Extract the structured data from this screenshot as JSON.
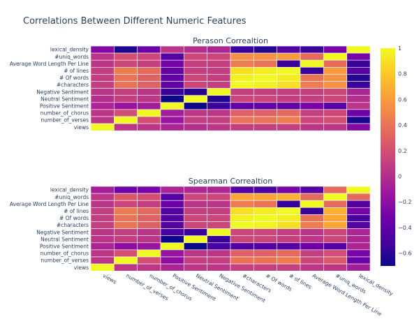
{
  "chart_data": {
    "type": "heatmap",
    "title": "Correlations Between Different Numeric Features",
    "features": [
      "views",
      "number_of_verses",
      "number_of_chorus",
      "Positive Sentiment",
      "Neutral Sentiment",
      "Negative Sentiment",
      "#characters",
      "# Of words",
      "# of lines",
      "Average Word Length Per Line",
      "#uniq_words",
      "lexical_density"
    ],
    "colorscale": [
      "#0d0887",
      "#46039f",
      "#7201a8",
      "#9c179e",
      "#bd3786",
      "#d8576b",
      "#ed7953",
      "#fb9f3a",
      "#fdca26",
      "#f0f921"
    ],
    "colorbar": {
      "range": [
        -0.7,
        1.0
      ],
      "ticks": [
        1,
        0.8,
        0.6,
        0.4,
        0.2,
        0,
        -0.2,
        -0.4,
        -0.6
      ],
      "tick_labels": [
        "1",
        "0.8",
        "0.6",
        "0.4",
        "0.2",
        "0",
        "−0.2",
        "−0.4",
        "−0.6"
      ]
    },
    "panels": [
      {
        "name": "Perason Correaltion",
        "y_labels": [
          "lexical_density",
          "#uniq_words",
          "Average Word Length Per Line",
          "# of lines",
          "# Of words",
          "#characters",
          "Negative Sentiment",
          "Neutral Sentiment",
          "Positive Sentiment",
          "number_of_chorus",
          "number_of_verses",
          "views"
        ],
        "z": [
          [
            -0.25,
            -0.65,
            -0.35,
            0.05,
            0.0,
            -0.05,
            -0.55,
            -0.62,
            -0.45,
            -0.55,
            -0.3,
            1.0
          ],
          [
            0.05,
            0.2,
            0.15,
            -0.45,
            0.15,
            0.15,
            0.55,
            0.55,
            0.6,
            0.35,
            1.0,
            -0.3
          ],
          [
            0.05,
            0.15,
            0.1,
            -0.3,
            0.1,
            0.1,
            0.45,
            0.4,
            -0.55,
            1.0,
            0.35,
            -0.55
          ],
          [
            0.1,
            0.45,
            0.35,
            -0.4,
            0.1,
            0.1,
            0.9,
            0.95,
            1.0,
            -0.55,
            0.6,
            -0.45
          ],
          [
            0.1,
            0.4,
            0.3,
            -0.4,
            0.15,
            0.1,
            0.97,
            1.0,
            0.95,
            0.4,
            0.55,
            -0.62
          ],
          [
            0.1,
            0.4,
            0.3,
            -0.4,
            0.15,
            0.1,
            1.0,
            0.97,
            0.9,
            0.45,
            0.55,
            -0.55
          ],
          [
            0.05,
            0.1,
            0.05,
            -0.55,
            -0.62,
            1.0,
            0.1,
            0.1,
            0.1,
            0.1,
            0.15,
            -0.05
          ],
          [
            0.0,
            0.1,
            0.05,
            -0.7,
            1.0,
            -0.62,
            0.15,
            0.15,
            0.1,
            0.1,
            0.15,
            0.0
          ],
          [
            -0.05,
            -0.15,
            -0.1,
            1.0,
            -0.7,
            -0.55,
            -0.4,
            -0.4,
            -0.4,
            -0.3,
            -0.45,
            0.05
          ],
          [
            0.05,
            0.2,
            1.0,
            -0.1,
            0.05,
            0.05,
            0.3,
            0.3,
            0.35,
            0.1,
            0.15,
            -0.35
          ],
          [
            0.05,
            1.0,
            0.2,
            -0.15,
            0.1,
            0.1,
            0.4,
            0.4,
            0.45,
            0.15,
            0.2,
            -0.65
          ],
          [
            1.0,
            0.05,
            0.05,
            -0.05,
            0.0,
            0.05,
            0.1,
            0.1,
            0.1,
            0.05,
            0.05,
            -0.25
          ]
        ]
      },
      {
        "name": "Spearman Correaltion",
        "y_labels": [
          "lexical_density",
          "#uniq_words",
          "Average Word Length Per Line",
          "# of lines",
          "# Of words",
          "#characters",
          "Negative Sentiment",
          "Neutral Sentiment",
          "Positive Sentiment",
          "number_of_chorus",
          "number_of_verses",
          "views"
        ],
        "z": [
          [
            -0.1,
            -0.35,
            -0.3,
            -0.05,
            -0.05,
            -0.05,
            -0.45,
            -0.5,
            -0.3,
            -0.45,
            0.35,
            1.0
          ],
          [
            0.05,
            0.25,
            0.2,
            -0.45,
            0.15,
            0.15,
            0.65,
            0.65,
            0.7,
            0.35,
            1.0,
            0.35
          ],
          [
            0.05,
            0.15,
            0.1,
            -0.35,
            0.05,
            0.05,
            0.45,
            0.4,
            -0.55,
            1.0,
            0.35,
            -0.45
          ],
          [
            0.1,
            0.45,
            0.35,
            -0.45,
            0.1,
            0.1,
            0.9,
            0.95,
            1.0,
            -0.55,
            0.7,
            -0.3
          ],
          [
            0.1,
            0.4,
            0.3,
            -0.45,
            0.15,
            0.15,
            0.97,
            1.0,
            0.95,
            0.4,
            0.65,
            -0.5
          ],
          [
            0.1,
            0.4,
            0.3,
            -0.45,
            0.15,
            0.15,
            1.0,
            0.97,
            0.9,
            0.45,
            0.65,
            -0.45
          ],
          [
            0.05,
            0.1,
            0.05,
            -0.5,
            -0.55,
            1.0,
            0.15,
            0.15,
            0.1,
            0.05,
            0.15,
            -0.05
          ],
          [
            0.05,
            0.1,
            0.05,
            -0.7,
            1.0,
            -0.55,
            0.15,
            0.15,
            0.1,
            0.05,
            0.15,
            -0.05
          ],
          [
            -0.05,
            -0.2,
            -0.15,
            1.0,
            -0.7,
            -0.5,
            -0.45,
            -0.45,
            -0.45,
            -0.35,
            -0.45,
            -0.05
          ],
          [
            0.05,
            0.2,
            1.0,
            -0.15,
            0.05,
            0.05,
            0.3,
            0.3,
            0.35,
            0.1,
            0.2,
            -0.3
          ],
          [
            0.05,
            1.0,
            0.2,
            -0.2,
            0.1,
            0.1,
            0.4,
            0.4,
            0.45,
            0.15,
            0.25,
            -0.35
          ],
          [
            1.0,
            0.05,
            0.05,
            -0.05,
            0.05,
            0.05,
            0.1,
            0.1,
            0.1,
            0.05,
            0.05,
            -0.1
          ]
        ]
      }
    ]
  }
}
